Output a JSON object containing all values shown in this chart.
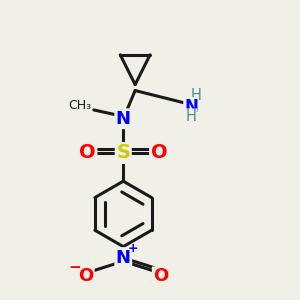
{
  "bg_color": "#f0f0e8",
  "bond_color": "#1a1a1a",
  "N_color": "#0000ff",
  "O_color": "#ff0000",
  "S_color": "#cccc00",
  "NH2_color": "#4a9090",
  "figsize": [
    3.0,
    3.0
  ],
  "dpi": 100,
  "xlim": [
    0,
    10
  ],
  "ylim": [
    0,
    10
  ]
}
